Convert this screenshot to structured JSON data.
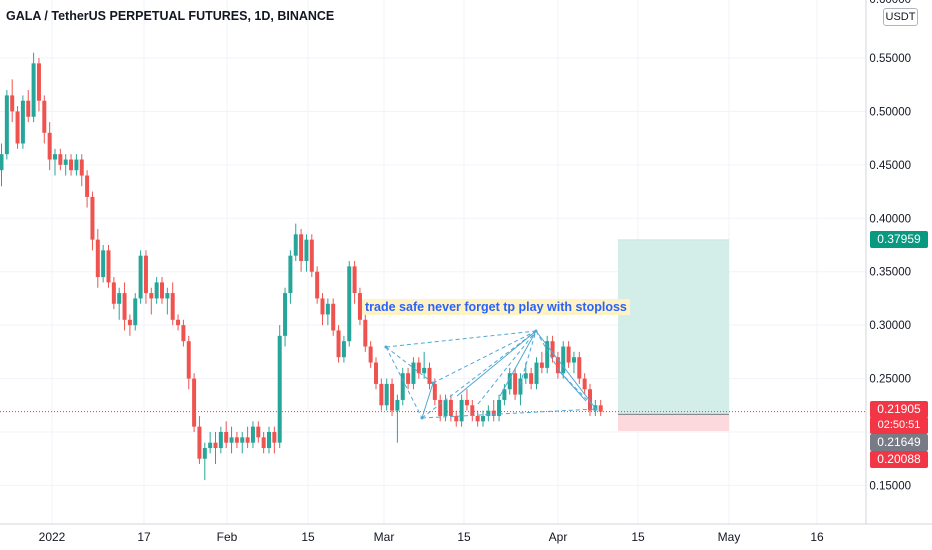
{
  "chart_data": {
    "type": "candlestick",
    "title": "GALA / TetherUS PERPETUAL FUTURES, 1D, BINANCE",
    "currency": "USDT",
    "y_axis": {
      "ticks": [
        "0.55000",
        "0.50000",
        "0.45000",
        "0.40000",
        "0.35000",
        "0.30000",
        "0.25000",
        "0.15000"
      ],
      "top_partial_label": "0.60000",
      "range": [
        0.12,
        0.605
      ]
    },
    "x_axis": {
      "ticks": [
        "2022",
        "17",
        "Feb",
        "15",
        "Mar",
        "15",
        "Apr",
        "15",
        "May",
        "16"
      ]
    },
    "price_labels": {
      "target": "0.37959",
      "current": "0.21905",
      "countdown": "02:50:51",
      "entry": "0.21649",
      "stop": "0.20088"
    },
    "annotation": "trade safe never forget tp play with stoploss",
    "position_tool": {
      "entry": 0.2165,
      "target": 0.3796,
      "stop": 0.2009
    },
    "colors": {
      "up": "#26a69a",
      "down": "#ef5350",
      "profit_zone": "#d3ede8",
      "loss_zone": "#fbd9dc",
      "pattern": "#4fa7d6"
    },
    "candles": [
      [
        0.445,
        0.47,
        0.43,
        0.46
      ],
      [
        0.46,
        0.52,
        0.455,
        0.515
      ],
      [
        0.515,
        0.53,
        0.49,
        0.5
      ],
      [
        0.5,
        0.505,
        0.465,
        0.47
      ],
      [
        0.47,
        0.515,
        0.465,
        0.51
      ],
      [
        0.51,
        0.52,
        0.49,
        0.495
      ],
      [
        0.495,
        0.555,
        0.49,
        0.545
      ],
      [
        0.545,
        0.55,
        0.5,
        0.51
      ],
      [
        0.51,
        0.515,
        0.47,
        0.48
      ],
      [
        0.48,
        0.49,
        0.445,
        0.455
      ],
      [
        0.455,
        0.465,
        0.44,
        0.46
      ],
      [
        0.46,
        0.465,
        0.445,
        0.45
      ],
      [
        0.45,
        0.46,
        0.44,
        0.455
      ],
      [
        0.455,
        0.46,
        0.44,
        0.445
      ],
      [
        0.445,
        0.46,
        0.44,
        0.455
      ],
      [
        0.455,
        0.46,
        0.43,
        0.44
      ],
      [
        0.44,
        0.445,
        0.41,
        0.42
      ],
      [
        0.42,
        0.425,
        0.37,
        0.38
      ],
      [
        0.38,
        0.39,
        0.335,
        0.345
      ],
      [
        0.345,
        0.375,
        0.34,
        0.37
      ],
      [
        0.37,
        0.375,
        0.335,
        0.34
      ],
      [
        0.34,
        0.345,
        0.315,
        0.32
      ],
      [
        0.32,
        0.335,
        0.305,
        0.33
      ],
      [
        0.33,
        0.34,
        0.295,
        0.305
      ],
      [
        0.305,
        0.31,
        0.29,
        0.3
      ],
      [
        0.3,
        0.33,
        0.295,
        0.325
      ],
      [
        0.325,
        0.37,
        0.32,
        0.365
      ],
      [
        0.365,
        0.37,
        0.32,
        0.33
      ],
      [
        0.33,
        0.335,
        0.31,
        0.325
      ],
      [
        0.325,
        0.345,
        0.32,
        0.34
      ],
      [
        0.34,
        0.345,
        0.32,
        0.325
      ],
      [
        0.325,
        0.335,
        0.31,
        0.33
      ],
      [
        0.33,
        0.34,
        0.3,
        0.305
      ],
      [
        0.305,
        0.31,
        0.295,
        0.3
      ],
      [
        0.3,
        0.305,
        0.28,
        0.285
      ],
      [
        0.285,
        0.29,
        0.24,
        0.25
      ],
      [
        0.25,
        0.255,
        0.2,
        0.205
      ],
      [
        0.205,
        0.215,
        0.17,
        0.175
      ],
      [
        0.175,
        0.19,
        0.155,
        0.185
      ],
      [
        0.185,
        0.2,
        0.18,
        0.19
      ],
      [
        0.19,
        0.2,
        0.17,
        0.185
      ],
      [
        0.185,
        0.205,
        0.18,
        0.2
      ],
      [
        0.2,
        0.21,
        0.185,
        0.19
      ],
      [
        0.19,
        0.205,
        0.18,
        0.195
      ],
      [
        0.195,
        0.2,
        0.185,
        0.19
      ],
      [
        0.19,
        0.2,
        0.18,
        0.195
      ],
      [
        0.195,
        0.205,
        0.185,
        0.19
      ],
      [
        0.19,
        0.21,
        0.185,
        0.205
      ],
      [
        0.205,
        0.21,
        0.19,
        0.195
      ],
      [
        0.195,
        0.2,
        0.18,
        0.185
      ],
      [
        0.185,
        0.205,
        0.18,
        0.2
      ],
      [
        0.2,
        0.205,
        0.18,
        0.19
      ],
      [
        0.19,
        0.3,
        0.185,
        0.29
      ],
      [
        0.29,
        0.335,
        0.28,
        0.33
      ],
      [
        0.33,
        0.37,
        0.32,
        0.365
      ],
      [
        0.365,
        0.395,
        0.36,
        0.385
      ],
      [
        0.385,
        0.39,
        0.35,
        0.36
      ],
      [
        0.36,
        0.385,
        0.35,
        0.38
      ],
      [
        0.38,
        0.385,
        0.345,
        0.35
      ],
      [
        0.35,
        0.355,
        0.32,
        0.325
      ],
      [
        0.325,
        0.33,
        0.3,
        0.31
      ],
      [
        0.31,
        0.325,
        0.3,
        0.32
      ],
      [
        0.32,
        0.325,
        0.29,
        0.295
      ],
      [
        0.295,
        0.3,
        0.265,
        0.27
      ],
      [
        0.27,
        0.29,
        0.265,
        0.285
      ],
      [
        0.285,
        0.36,
        0.28,
        0.355
      ],
      [
        0.355,
        0.36,
        0.32,
        0.33
      ],
      [
        0.33,
        0.335,
        0.3,
        0.305
      ],
      [
        0.305,
        0.31,
        0.275,
        0.28
      ],
      [
        0.28,
        0.285,
        0.26,
        0.265
      ],
      [
        0.265,
        0.27,
        0.24,
        0.245
      ],
      [
        0.245,
        0.25,
        0.22,
        0.225
      ],
      [
        0.225,
        0.25,
        0.22,
        0.245
      ],
      [
        0.245,
        0.25,
        0.215,
        0.22
      ],
      [
        0.22,
        0.235,
        0.19,
        0.23
      ],
      [
        0.23,
        0.26,
        0.225,
        0.255
      ],
      [
        0.255,
        0.26,
        0.24,
        0.245
      ],
      [
        0.245,
        0.27,
        0.24,
        0.265
      ],
      [
        0.265,
        0.27,
        0.25,
        0.255
      ],
      [
        0.255,
        0.275,
        0.25,
        0.26
      ],
      [
        0.26,
        0.265,
        0.24,
        0.245
      ],
      [
        0.245,
        0.25,
        0.225,
        0.23
      ],
      [
        0.23,
        0.235,
        0.21,
        0.215
      ],
      [
        0.215,
        0.235,
        0.21,
        0.23
      ],
      [
        0.23,
        0.235,
        0.21,
        0.215
      ],
      [
        0.215,
        0.22,
        0.205,
        0.21
      ],
      [
        0.21,
        0.235,
        0.205,
        0.23
      ],
      [
        0.23,
        0.24,
        0.22,
        0.225
      ],
      [
        0.225,
        0.23,
        0.21,
        0.215
      ],
      [
        0.215,
        0.22,
        0.205,
        0.21
      ],
      [
        0.21,
        0.22,
        0.205,
        0.215
      ],
      [
        0.215,
        0.225,
        0.21,
        0.22
      ],
      [
        0.22,
        0.23,
        0.21,
        0.215
      ],
      [
        0.215,
        0.235,
        0.21,
        0.23
      ],
      [
        0.23,
        0.245,
        0.225,
        0.24
      ],
      [
        0.24,
        0.26,
        0.235,
        0.255
      ],
      [
        0.255,
        0.26,
        0.23,
        0.235
      ],
      [
        0.235,
        0.255,
        0.225,
        0.25
      ],
      [
        0.25,
        0.265,
        0.245,
        0.255
      ],
      [
        0.255,
        0.26,
        0.24,
        0.245
      ],
      [
        0.245,
        0.27,
        0.24,
        0.265
      ],
      [
        0.265,
        0.275,
        0.255,
        0.26
      ],
      [
        0.26,
        0.29,
        0.255,
        0.285
      ],
      [
        0.285,
        0.29,
        0.265,
        0.27
      ],
      [
        0.27,
        0.275,
        0.25,
        0.255
      ],
      [
        0.255,
        0.285,
        0.25,
        0.28
      ],
      [
        0.28,
        0.285,
        0.26,
        0.265
      ],
      [
        0.265,
        0.275,
        0.255,
        0.27
      ],
      [
        0.27,
        0.275,
        0.245,
        0.25
      ],
      [
        0.25,
        0.255,
        0.235,
        0.24
      ],
      [
        0.24,
        0.245,
        0.215,
        0.22
      ],
      [
        0.22,
        0.23,
        0.215,
        0.225
      ],
      [
        0.225,
        0.23,
        0.215,
        0.219
      ]
    ]
  }
}
